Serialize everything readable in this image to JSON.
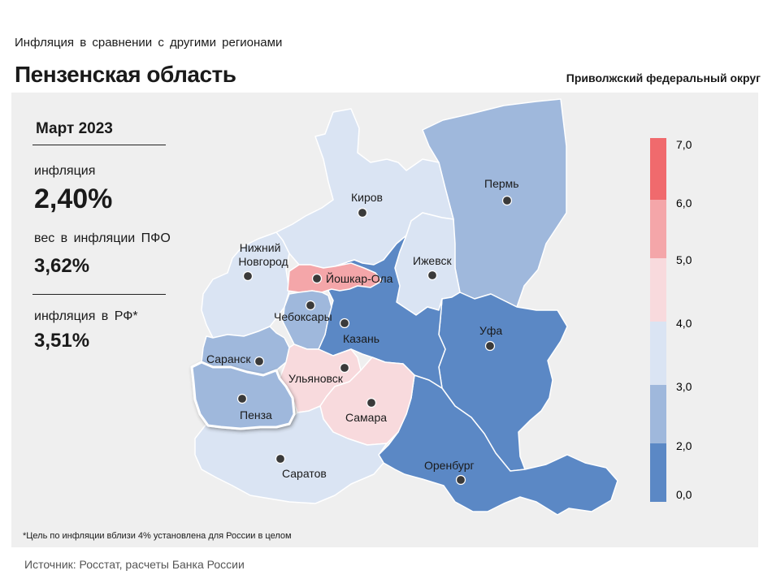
{
  "header": {
    "supertitle": "Инфляция  в сравнении  с другими  регионами",
    "title": "Пензенская область",
    "district": "Приволжский федеральный округ"
  },
  "stats": {
    "date": "Март 2023",
    "inflation_label": "инфляция",
    "inflation_value": "2,40%",
    "weight_label": "вес в инфляции  ПФО",
    "weight_value": "3,62%",
    "rf_label": "инфляция  в РФ*",
    "rf_value": "3,51%"
  },
  "footnote": "*Цель по инфляции вблизи 4% установлена для России в целом",
  "source": "Источник: Росстат, расчеты Банка России",
  "colors": {
    "panel_bg": "#efefef",
    "class_0_2": "#5b88c5",
    "class_2_3": "#9fb8dc",
    "class_3_4": "#dae4f3",
    "class_4_5": "#f8dadd",
    "class_5_6": "#f4a6a9",
    "class_6_7": "#f06a6d",
    "highlight_border": "#ffffff"
  },
  "chart_data": {
    "type": "choropleth",
    "value_unit": "%",
    "legend": {
      "ticks": [
        "7,0",
        "6,0",
        "5,0",
        "4,0",
        "3,0",
        "2,0",
        "0,0"
      ],
      "classes": [
        {
          "range": [
            6,
            7
          ],
          "color": "#f06a6d"
        },
        {
          "range": [
            5,
            6
          ],
          "color": "#f4a6a9"
        },
        {
          "range": [
            4,
            5
          ],
          "color": "#f8dadd"
        },
        {
          "range": [
            3,
            4
          ],
          "color": "#dae4f3"
        },
        {
          "range": [
            2,
            3
          ],
          "color": "#9fb8dc"
        },
        {
          "range": [
            0,
            2
          ],
          "color": "#5b88c5"
        }
      ]
    },
    "regions": [
      {
        "city": "Пермь",
        "class": "2-3"
      },
      {
        "city": "Киров",
        "class": "3-4"
      },
      {
        "city": "Ижевск",
        "class": "3-4"
      },
      {
        "city": "Нижний Новгород",
        "class": "3-4"
      },
      {
        "city": "Йошкар-Ола",
        "class": "5-6"
      },
      {
        "city": "Чебоксары",
        "class": "2-3"
      },
      {
        "city": "Казань",
        "class": "0-2"
      },
      {
        "city": "Уфа",
        "class": "0-2"
      },
      {
        "city": "Саранск",
        "class": "2-3"
      },
      {
        "city": "Ульяновск",
        "class": "4-5"
      },
      {
        "city": "Пенза",
        "class": "2-3",
        "highlighted": true,
        "value": 2.4
      },
      {
        "city": "Самара",
        "class": "4-5"
      },
      {
        "city": "Саратов",
        "class": "3-4"
      },
      {
        "city": "Оренбург",
        "class": "0-2"
      }
    ]
  }
}
